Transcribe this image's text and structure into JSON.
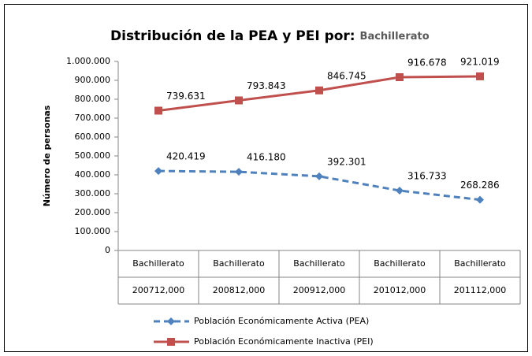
{
  "chart_data": {
    "type": "line",
    "title": "Distribución de la PEA y PEI por:",
    "subtitle": "Bachillerato",
    "y_label": "Número de personas",
    "categories": [
      [
        "Bachillerato",
        "200712,000"
      ],
      [
        "Bachillerato",
        "200812,000"
      ],
      [
        "Bachillerato",
        "200912,000"
      ],
      [
        "Bachillerato",
        "201012,000"
      ],
      [
        "Bachillerato",
        "201112,000"
      ]
    ],
    "series": [
      {
        "name": "Población Económicamente Activa (PEA)",
        "color": "#4f81bd",
        "dash": true,
        "marker": "diamond",
        "values": [
          420419,
          416180,
          392301,
          316733,
          268286
        ],
        "value_labels": [
          "420.419",
          "416.180",
          "392.301",
          "316.733",
          "268.286"
        ]
      },
      {
        "name": "Población Económicamente Inactiva (PEI)",
        "color": "#c0504d",
        "dash": false,
        "marker": "square",
        "values": [
          739631,
          793843,
          846745,
          916678,
          921019
        ],
        "value_labels": [
          "739.631",
          "793.843",
          "846.745",
          "916.678",
          "921.019"
        ]
      }
    ],
    "ylim": [
      0,
      1000000
    ],
    "yticks": [
      0,
      {
        "value": 100000,
        "label": "100.000"
      },
      {
        "value": 200000,
        "label": "200.000"
      },
      {
        "value": 300000,
        "label": "300.000"
      },
      {
        "value": 400000,
        "label": "400.000"
      },
      {
        "value": 500000,
        "label": "500.000"
      },
      {
        "value": 600000,
        "label": "600.000"
      },
      {
        "value": 700000,
        "label": "700.000"
      },
      {
        "value": 800000,
        "label": "800.000"
      },
      {
        "value": 900000,
        "label": "900.000"
      },
      {
        "value": 1000000,
        "label": "1.000.000"
      }
    ],
    "grid": false
  }
}
